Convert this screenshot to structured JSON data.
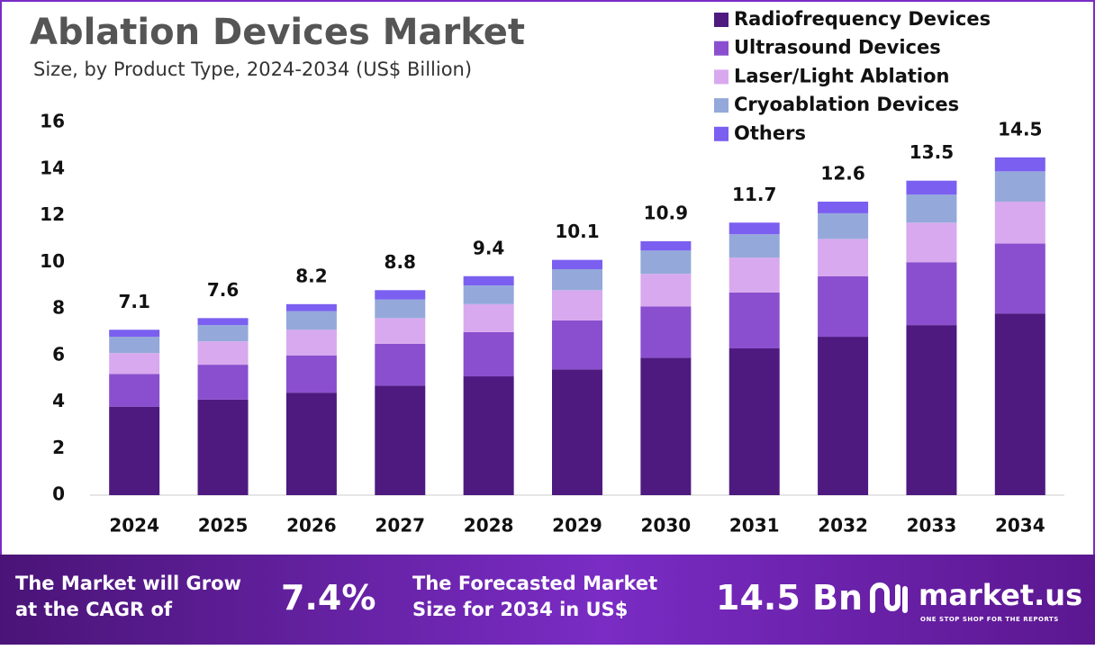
{
  "title": "Ablation Devices Market",
  "subtitle": "Size, by Product Type, 2024-2034 (US$ Billion)",
  "chart_data": {
    "type": "stacked-bar",
    "categories": [
      "2024",
      "2025",
      "2026",
      "2027",
      "2028",
      "2029",
      "2030",
      "2031",
      "2032",
      "2033",
      "2034"
    ],
    "series": [
      {
        "name": "Radiofrequency Devices",
        "color": "#4e1a80",
        "values": [
          3.8,
          4.1,
          4.4,
          4.7,
          5.1,
          5.4,
          5.9,
          6.3,
          6.8,
          7.3,
          7.8
        ]
      },
      {
        "name": "Ultrasound Devices",
        "color": "#8a4fce",
        "values": [
          1.4,
          1.5,
          1.6,
          1.8,
          1.9,
          2.1,
          2.2,
          2.4,
          2.6,
          2.7,
          3.0
        ]
      },
      {
        "name": "Laser/Light Ablation",
        "color": "#d8a9ee",
        "values": [
          0.9,
          1.0,
          1.1,
          1.1,
          1.2,
          1.3,
          1.4,
          1.5,
          1.6,
          1.7,
          1.8
        ]
      },
      {
        "name": "Cryoablation Devices",
        "color": "#94a9da",
        "values": [
          0.7,
          0.7,
          0.8,
          0.8,
          0.8,
          0.9,
          1.0,
          1.0,
          1.1,
          1.2,
          1.3
        ]
      },
      {
        "name": "Others",
        "color": "#7b5ff0",
        "values": [
          0.3,
          0.3,
          0.3,
          0.4,
          0.4,
          0.4,
          0.4,
          0.5,
          0.5,
          0.6,
          0.6
        ]
      }
    ],
    "totals": [
      7.1,
      7.6,
      8.2,
      8.8,
      9.4,
      10.1,
      10.9,
      11.7,
      12.6,
      13.5,
      14.5
    ],
    "ylim": [
      0,
      16
    ],
    "yticks": [
      0,
      2,
      4,
      6,
      8,
      10,
      12,
      14,
      16
    ],
    "grid": false
  },
  "footer": {
    "cagr_text": "The Market will Grow at the CAGR of",
    "cagr": "7.4%",
    "size_text": "The Forecasted Market Size for 2034 in US$",
    "size": "14.5 Bn",
    "brand": "market.us",
    "tagline": "ONE STOP SHOP FOR THE REPORTS"
  }
}
